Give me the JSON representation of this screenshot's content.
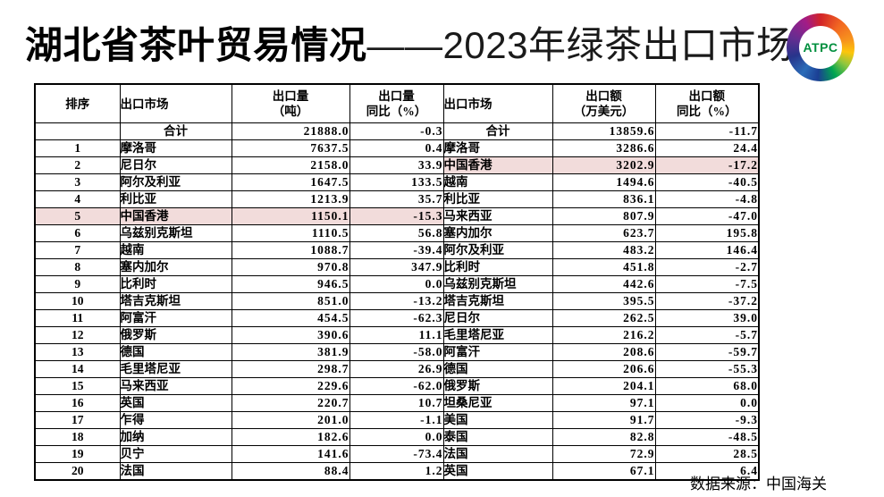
{
  "title": {
    "bold": "湖北省茶叶贸易情况",
    "regular": "——2023年绿茶出口市场"
  },
  "logo": {
    "text": "ATPC",
    "text_color": "#008f3e",
    "swirl_stops": [
      "#d22428 0deg",
      "#f26722 40deg",
      "#f7941d 75deg",
      "#fdc60b 100deg",
      "#8dc63f 125deg",
      "#00a551 152deg",
      "#1b3f94 185deg",
      "#2b6cb8 215deg",
      "#27348b 252deg",
      "#662d91 290deg",
      "#a21c87 330deg",
      "#d22428 360deg"
    ]
  },
  "footer": {
    "source": "数据来源：中国海关"
  },
  "colors": {
    "highlight": "#f2dcdb"
  },
  "table": {
    "headers": {
      "rank": "排序",
      "market_volume": "出口市场",
      "volume_l1": "出口量",
      "volume_l2": "（吨）",
      "volume_yoy_l1": "出口量",
      "volume_yoy_l2": "同比（%）",
      "market_value": "出口市场",
      "value_l1": "出口额",
      "value_l2": "（万美元）",
      "value_yoy_l1": "出口额",
      "value_yoy_l2": "同比（%）"
    },
    "total_row": {
      "rank": "",
      "market_v": "合计",
      "volume": "21888.0",
      "volume_yoy": "-0.3",
      "market_a": "合计",
      "value": "13859.6",
      "value_yoy": "-11.7"
    },
    "rows": [
      {
        "rank": "1",
        "market_v": "摩洛哥",
        "volume": "7637.5",
        "volume_yoy": "0.4",
        "market_a": "摩洛哥",
        "value": "3286.6",
        "value_yoy": "24.4",
        "hl_v": false,
        "hl_a": false
      },
      {
        "rank": "2",
        "market_v": "尼日尔",
        "volume": "2158.0",
        "volume_yoy": "33.9",
        "market_a": "中国香港",
        "value": "3202.9",
        "value_yoy": "-17.2",
        "hl_v": false,
        "hl_a": true
      },
      {
        "rank": "3",
        "market_v": "阿尔及利亚",
        "volume": "1647.5",
        "volume_yoy": "133.5",
        "market_a": "越南",
        "value": "1494.6",
        "value_yoy": "-40.5",
        "hl_v": false,
        "hl_a": false
      },
      {
        "rank": "4",
        "market_v": "利比亚",
        "volume": "1213.9",
        "volume_yoy": "35.7",
        "market_a": "利比亚",
        "value": "836.1",
        "value_yoy": "-4.8",
        "hl_v": false,
        "hl_a": false
      },
      {
        "rank": "5",
        "market_v": "中国香港",
        "volume": "1150.1",
        "volume_yoy": "-15.3",
        "market_a": "马来西亚",
        "value": "807.9",
        "value_yoy": "-47.0",
        "hl_v": true,
        "hl_a": false
      },
      {
        "rank": "6",
        "market_v": "乌兹别克斯坦",
        "volume": "1110.5",
        "volume_yoy": "56.8",
        "market_a": "塞内加尔",
        "value": "623.7",
        "value_yoy": "195.8",
        "hl_v": false,
        "hl_a": false
      },
      {
        "rank": "7",
        "market_v": "越南",
        "volume": "1088.7",
        "volume_yoy": "-39.4",
        "market_a": "阿尔及利亚",
        "value": "483.2",
        "value_yoy": "146.4",
        "hl_v": false,
        "hl_a": false
      },
      {
        "rank": "8",
        "market_v": "塞内加尔",
        "volume": "970.8",
        "volume_yoy": "347.9",
        "market_a": "比利时",
        "value": "451.8",
        "value_yoy": "-2.7",
        "hl_v": false,
        "hl_a": false
      },
      {
        "rank": "9",
        "market_v": "比利时",
        "volume": "946.5",
        "volume_yoy": "0.0",
        "market_a": "乌兹别克斯坦",
        "value": "442.6",
        "value_yoy": "-7.5",
        "hl_v": false,
        "hl_a": false
      },
      {
        "rank": "10",
        "market_v": "塔吉克斯坦",
        "volume": "851.0",
        "volume_yoy": "-13.2",
        "market_a": "塔吉克斯坦",
        "value": "395.5",
        "value_yoy": "-37.2",
        "hl_v": false,
        "hl_a": false
      },
      {
        "rank": "11",
        "market_v": "阿富汗",
        "volume": "454.5",
        "volume_yoy": "-62.3",
        "market_a": "尼日尔",
        "value": "262.5",
        "value_yoy": "39.0",
        "hl_v": false,
        "hl_a": false
      },
      {
        "rank": "12",
        "market_v": "俄罗斯",
        "volume": "390.6",
        "volume_yoy": "11.1",
        "market_a": "毛里塔尼亚",
        "value": "216.2",
        "value_yoy": "-5.7",
        "hl_v": false,
        "hl_a": false
      },
      {
        "rank": "13",
        "market_v": "德国",
        "volume": "381.9",
        "volume_yoy": "-58.0",
        "market_a": "阿富汗",
        "value": "208.6",
        "value_yoy": "-59.7",
        "hl_v": false,
        "hl_a": false
      },
      {
        "rank": "14",
        "market_v": "毛里塔尼亚",
        "volume": "298.7",
        "volume_yoy": "26.9",
        "market_a": "德国",
        "value": "206.6",
        "value_yoy": "-55.3",
        "hl_v": false,
        "hl_a": false
      },
      {
        "rank": "15",
        "market_v": "马来西亚",
        "volume": "229.6",
        "volume_yoy": "-62.0",
        "market_a": "俄罗斯",
        "value": "204.1",
        "value_yoy": "68.0",
        "hl_v": false,
        "hl_a": false
      },
      {
        "rank": "16",
        "market_v": "英国",
        "volume": "220.7",
        "volume_yoy": "10.7",
        "market_a": "坦桑尼亚",
        "value": "97.1",
        "value_yoy": "0.0",
        "hl_v": false,
        "hl_a": false
      },
      {
        "rank": "17",
        "market_v": "乍得",
        "volume": "201.0",
        "volume_yoy": "-1.1",
        "market_a": "美国",
        "value": "91.7",
        "value_yoy": "-9.3",
        "hl_v": false,
        "hl_a": false
      },
      {
        "rank": "18",
        "market_v": "加纳",
        "volume": "182.6",
        "volume_yoy": "0.0",
        "market_a": "泰国",
        "value": "82.8",
        "value_yoy": "-48.5",
        "hl_v": false,
        "hl_a": false
      },
      {
        "rank": "19",
        "market_v": "贝宁",
        "volume": "141.6",
        "volume_yoy": "-73.4",
        "market_a": "法国",
        "value": "72.9",
        "value_yoy": "28.5",
        "hl_v": false,
        "hl_a": false
      },
      {
        "rank": "20",
        "market_v": "法国",
        "volume": "88.4",
        "volume_yoy": "1.2",
        "market_a": "英国",
        "value": "67.1",
        "value_yoy": "6.4",
        "hl_v": false,
        "hl_a": false
      }
    ]
  }
}
